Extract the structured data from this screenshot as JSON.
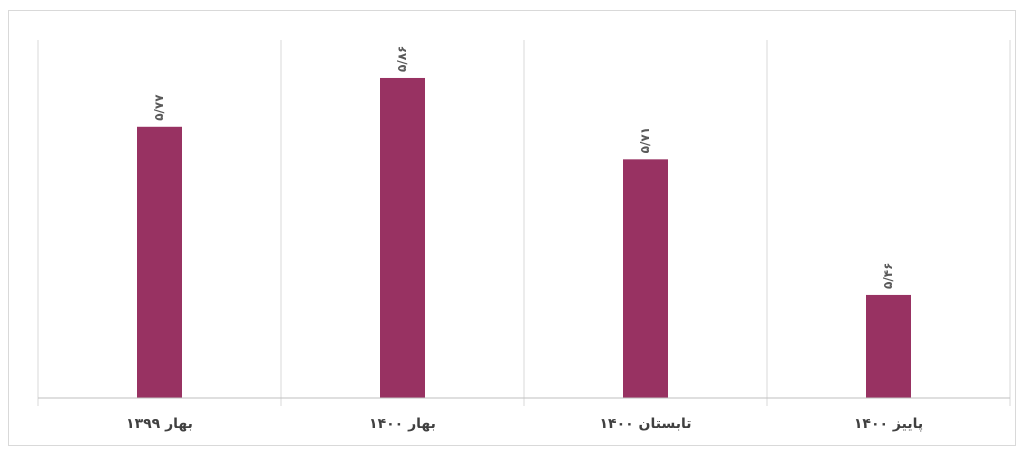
{
  "chart_data": {
    "type": "bar",
    "categories": [
      "بهار ۱۳۹۹",
      "بهار ۱۴۰۰",
      "تابستان ۱۴۰۰",
      "پاییز ۱۴۰۰"
    ],
    "values": [
      5.77,
      5.86,
      5.71,
      5.46
    ],
    "data_labels": [
      "۵/۷۷",
      "۵/۸۶",
      "۵/۷۱",
      "۵/۴۶"
    ],
    "ylim": [
      5.27,
      5.93
    ],
    "grid": "vertical category separators",
    "bar_color": "#983262",
    "title": "",
    "xlabel": "",
    "ylabel": ""
  }
}
